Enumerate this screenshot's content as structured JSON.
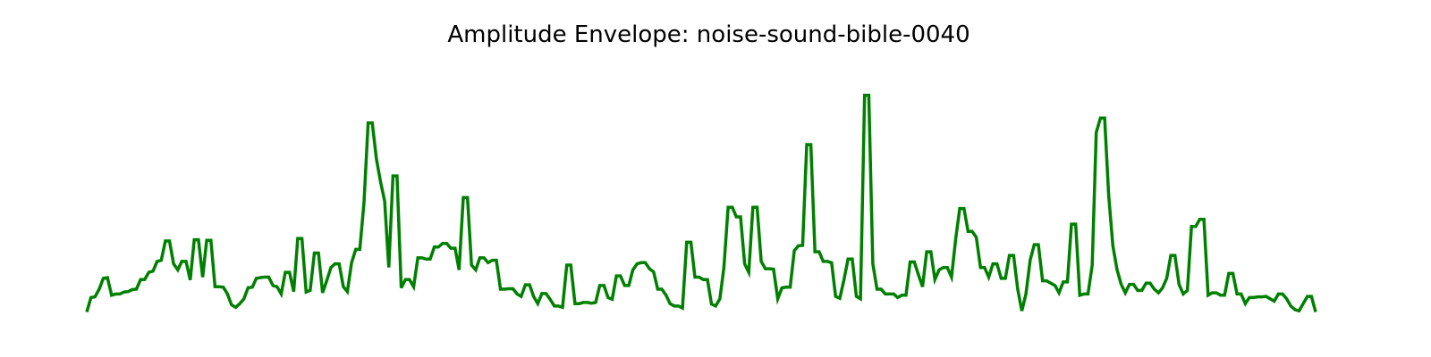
{
  "chart_data": {
    "type": "line",
    "title": "Amplitude Envelope: noise-sound-bible-0040",
    "xlabel": "",
    "ylabel": "",
    "axes_visible": false,
    "grid": false,
    "line_color": "#008000",
    "x_range": [
      0,
      1
    ],
    "y_range": [
      0,
      1
    ],
    "series": [
      {
        "points": [
          [
            0.0,
            0.005
          ],
          [
            0.0034,
            0.065
          ],
          [
            0.0067,
            0.068
          ],
          [
            0.0101,
            0.1
          ],
          [
            0.0135,
            0.145
          ],
          [
            0.0168,
            0.148
          ],
          [
            0.0202,
            0.075
          ],
          [
            0.0236,
            0.08
          ],
          [
            0.0269,
            0.08
          ],
          [
            0.0303,
            0.088
          ],
          [
            0.0337,
            0.09
          ],
          [
            0.037,
            0.098
          ],
          [
            0.0404,
            0.1
          ],
          [
            0.0438,
            0.14
          ],
          [
            0.0471,
            0.14
          ],
          [
            0.0505,
            0.17
          ],
          [
            0.0539,
            0.175
          ],
          [
            0.0572,
            0.215
          ],
          [
            0.0606,
            0.22
          ],
          [
            0.064,
            0.3
          ],
          [
            0.0673,
            0.3
          ],
          [
            0.0707,
            0.205
          ],
          [
            0.0741,
            0.18
          ],
          [
            0.0774,
            0.215
          ],
          [
            0.0808,
            0.215
          ],
          [
            0.0842,
            0.138
          ],
          [
            0.0875,
            0.305
          ],
          [
            0.0909,
            0.305
          ],
          [
            0.0943,
            0.15
          ],
          [
            0.0976,
            0.303
          ],
          [
            0.101,
            0.303
          ],
          [
            0.1044,
            0.11
          ],
          [
            0.1077,
            0.11
          ],
          [
            0.1111,
            0.108
          ],
          [
            0.1145,
            0.08
          ],
          [
            0.1178,
            0.035
          ],
          [
            0.1212,
            0.025
          ],
          [
            0.1246,
            0.04
          ],
          [
            0.1279,
            0.06
          ],
          [
            0.1313,
            0.106
          ],
          [
            0.1347,
            0.108
          ],
          [
            0.138,
            0.145
          ],
          [
            0.1414,
            0.148
          ],
          [
            0.1448,
            0.15
          ],
          [
            0.1481,
            0.15
          ],
          [
            0.1515,
            0.115
          ],
          [
            0.1549,
            0.11
          ],
          [
            0.1582,
            0.08
          ],
          [
            0.1616,
            0.17
          ],
          [
            0.165,
            0.17
          ],
          [
            0.1684,
            0.09
          ],
          [
            0.1717,
            0.31
          ],
          [
            0.1751,
            0.31
          ],
          [
            0.1785,
            0.088
          ],
          [
            0.1818,
            0.095
          ],
          [
            0.1852,
            0.25
          ],
          [
            0.1886,
            0.25
          ],
          [
            0.1919,
            0.085
          ],
          [
            0.1953,
            0.135
          ],
          [
            0.1987,
            0.19
          ],
          [
            0.202,
            0.205
          ],
          [
            0.2054,
            0.205
          ],
          [
            0.2088,
            0.11
          ],
          [
            0.2121,
            0.09
          ],
          [
            0.2155,
            0.21
          ],
          [
            0.2189,
            0.265
          ],
          [
            0.2222,
            0.265
          ],
          [
            0.2256,
            0.46
          ],
          [
            0.229,
            0.79
          ],
          [
            0.2323,
            0.79
          ],
          [
            0.2357,
            0.64
          ],
          [
            0.2391,
            0.545
          ],
          [
            0.2424,
            0.465
          ],
          [
            0.2458,
            0.19
          ],
          [
            0.2492,
            0.57
          ],
          [
            0.2525,
            0.57
          ],
          [
            0.2559,
            0.105
          ],
          [
            0.2593,
            0.14
          ],
          [
            0.2626,
            0.14
          ],
          [
            0.266,
            0.11
          ],
          [
            0.2694,
            0.23
          ],
          [
            0.2727,
            0.23
          ],
          [
            0.2761,
            0.225
          ],
          [
            0.2795,
            0.225
          ],
          [
            0.2828,
            0.275
          ],
          [
            0.2862,
            0.275
          ],
          [
            0.2896,
            0.29
          ],
          [
            0.2929,
            0.29
          ],
          [
            0.2963,
            0.27
          ],
          [
            0.2997,
            0.27
          ],
          [
            0.303,
            0.18
          ],
          [
            0.3064,
            0.48
          ],
          [
            0.3098,
            0.48
          ],
          [
            0.3131,
            0.2
          ],
          [
            0.3165,
            0.18
          ],
          [
            0.3199,
            0.23
          ],
          [
            0.3232,
            0.23
          ],
          [
            0.3266,
            0.21
          ],
          [
            0.33,
            0.22
          ],
          [
            0.3333,
            0.22
          ],
          [
            0.3367,
            0.1
          ],
          [
            0.3401,
            0.1
          ],
          [
            0.3434,
            0.102
          ],
          [
            0.3468,
            0.102
          ],
          [
            0.3502,
            0.08
          ],
          [
            0.3535,
            0.07
          ],
          [
            0.3569,
            0.118
          ],
          [
            0.3603,
            0.118
          ],
          [
            0.3636,
            0.07
          ],
          [
            0.367,
            0.04
          ],
          [
            0.3704,
            0.082
          ],
          [
            0.3737,
            0.082
          ],
          [
            0.3771,
            0.058
          ],
          [
            0.3805,
            0.03
          ],
          [
            0.3838,
            0.03
          ],
          [
            0.3872,
            0.025
          ],
          [
            0.3906,
            0.2
          ],
          [
            0.3939,
            0.2
          ],
          [
            0.3973,
            0.04
          ],
          [
            0.4007,
            0.04
          ],
          [
            0.404,
            0.045
          ],
          [
            0.4074,
            0.045
          ],
          [
            0.4108,
            0.042
          ],
          [
            0.4141,
            0.045
          ],
          [
            0.4175,
            0.115
          ],
          [
            0.4209,
            0.115
          ],
          [
            0.4242,
            0.065
          ],
          [
            0.4276,
            0.058
          ],
          [
            0.431,
            0.155
          ],
          [
            0.4343,
            0.155
          ],
          [
            0.4377,
            0.115
          ],
          [
            0.4411,
            0.115
          ],
          [
            0.4444,
            0.18
          ],
          [
            0.4478,
            0.205
          ],
          [
            0.4512,
            0.21
          ],
          [
            0.4545,
            0.21
          ],
          [
            0.4579,
            0.185
          ],
          [
            0.4613,
            0.172
          ],
          [
            0.4646,
            0.1
          ],
          [
            0.468,
            0.1
          ],
          [
            0.4714,
            0.075
          ],
          [
            0.4747,
            0.04
          ],
          [
            0.4781,
            0.03
          ],
          [
            0.4815,
            0.03
          ],
          [
            0.4848,
            0.022
          ],
          [
            0.4882,
            0.295
          ],
          [
            0.4916,
            0.295
          ],
          [
            0.4949,
            0.15
          ],
          [
            0.4983,
            0.15
          ],
          [
            0.5017,
            0.14
          ],
          [
            0.5051,
            0.14
          ],
          [
            0.5084,
            0.038
          ],
          [
            0.5118,
            0.03
          ],
          [
            0.5152,
            0.06
          ],
          [
            0.5185,
            0.19
          ],
          [
            0.5219,
            0.44
          ],
          [
            0.5253,
            0.44
          ],
          [
            0.5286,
            0.4
          ],
          [
            0.532,
            0.4
          ],
          [
            0.5354,
            0.205
          ],
          [
            0.5387,
            0.17
          ],
          [
            0.5421,
            0.44
          ],
          [
            0.5455,
            0.44
          ],
          [
            0.5488,
            0.215
          ],
          [
            0.5522,
            0.185
          ],
          [
            0.5556,
            0.185
          ],
          [
            0.5589,
            0.183
          ],
          [
            0.5623,
            0.06
          ],
          [
            0.5657,
            0.105
          ],
          [
            0.569,
            0.108
          ],
          [
            0.5724,
            0.108
          ],
          [
            0.5758,
            0.26
          ],
          [
            0.5791,
            0.28
          ],
          [
            0.5825,
            0.282
          ],
          [
            0.5859,
            0.7
          ],
          [
            0.5892,
            0.7
          ],
          [
            0.5926,
            0.255
          ],
          [
            0.596,
            0.255
          ],
          [
            0.5993,
            0.215
          ],
          [
            0.6027,
            0.215
          ],
          [
            0.6061,
            0.21
          ],
          [
            0.6094,
            0.07
          ],
          [
            0.6128,
            0.062
          ],
          [
            0.6162,
            0.14
          ],
          [
            0.6195,
            0.225
          ],
          [
            0.6229,
            0.225
          ],
          [
            0.6263,
            0.07
          ],
          [
            0.6296,
            0.06
          ],
          [
            0.633,
            0.905
          ],
          [
            0.6364,
            0.905
          ],
          [
            0.6397,
            0.205
          ],
          [
            0.6431,
            0.1
          ],
          [
            0.6465,
            0.1
          ],
          [
            0.6498,
            0.08
          ],
          [
            0.6532,
            0.08
          ],
          [
            0.6566,
            0.08
          ],
          [
            0.6599,
            0.065
          ],
          [
            0.6633,
            0.075
          ],
          [
            0.6667,
            0.075
          ],
          [
            0.67,
            0.213
          ],
          [
            0.6734,
            0.213
          ],
          [
            0.6768,
            0.16
          ],
          [
            0.6801,
            0.11
          ],
          [
            0.6835,
            0.255
          ],
          [
            0.6869,
            0.255
          ],
          [
            0.6902,
            0.14
          ],
          [
            0.6936,
            0.18
          ],
          [
            0.697,
            0.19
          ],
          [
            0.7003,
            0.19
          ],
          [
            0.7037,
            0.15
          ],
          [
            0.7071,
            0.31
          ],
          [
            0.7104,
            0.435
          ],
          [
            0.7138,
            0.435
          ],
          [
            0.7172,
            0.34
          ],
          [
            0.7205,
            0.34
          ],
          [
            0.7239,
            0.315
          ],
          [
            0.7273,
            0.19
          ],
          [
            0.7306,
            0.19
          ],
          [
            0.734,
            0.15
          ],
          [
            0.7374,
            0.205
          ],
          [
            0.7407,
            0.205
          ],
          [
            0.7441,
            0.145
          ],
          [
            0.7475,
            0.145
          ],
          [
            0.7508,
            0.24
          ],
          [
            0.7542,
            0.24
          ],
          [
            0.7576,
            0.1
          ],
          [
            0.7609,
            0.01
          ],
          [
            0.7643,
            0.08
          ],
          [
            0.7677,
            0.22
          ],
          [
            0.771,
            0.285
          ],
          [
            0.7744,
            0.285
          ],
          [
            0.7778,
            0.135
          ],
          [
            0.7811,
            0.135
          ],
          [
            0.7845,
            0.125
          ],
          [
            0.7879,
            0.115
          ],
          [
            0.7912,
            0.085
          ],
          [
            0.7946,
            0.13
          ],
          [
            0.798,
            0.13
          ],
          [
            0.8013,
            0.37
          ],
          [
            0.8047,
            0.37
          ],
          [
            0.8081,
            0.075
          ],
          [
            0.8114,
            0.08
          ],
          [
            0.8148,
            0.08
          ],
          [
            0.8182,
            0.2
          ],
          [
            0.8215,
            0.75
          ],
          [
            0.8249,
            0.81
          ],
          [
            0.8283,
            0.81
          ],
          [
            0.8316,
            0.49
          ],
          [
            0.835,
            0.28
          ],
          [
            0.8384,
            0.18
          ],
          [
            0.8418,
            0.12
          ],
          [
            0.8451,
            0.085
          ],
          [
            0.8485,
            0.12
          ],
          [
            0.8519,
            0.12
          ],
          [
            0.8552,
            0.095
          ],
          [
            0.8586,
            0.095
          ],
          [
            0.862,
            0.125
          ],
          [
            0.8653,
            0.125
          ],
          [
            0.8687,
            0.1
          ],
          [
            0.8721,
            0.085
          ],
          [
            0.8754,
            0.105
          ],
          [
            0.8788,
            0.145
          ],
          [
            0.8822,
            0.24
          ],
          [
            0.8855,
            0.24
          ],
          [
            0.8889,
            0.12
          ],
          [
            0.8923,
            0.08
          ],
          [
            0.8956,
            0.095
          ],
          [
            0.899,
            0.36
          ],
          [
            0.9024,
            0.36
          ],
          [
            0.9057,
            0.39
          ],
          [
            0.9091,
            0.39
          ],
          [
            0.9125,
            0.075
          ],
          [
            0.9158,
            0.085
          ],
          [
            0.9192,
            0.085
          ],
          [
            0.9226,
            0.075
          ],
          [
            0.9259,
            0.075
          ],
          [
            0.9293,
            0.165
          ],
          [
            0.9327,
            0.165
          ],
          [
            0.936,
            0.08
          ],
          [
            0.9394,
            0.08
          ],
          [
            0.9428,
            0.04
          ],
          [
            0.9461,
            0.065
          ],
          [
            0.9495,
            0.065
          ],
          [
            0.9529,
            0.068
          ],
          [
            0.9562,
            0.068
          ],
          [
            0.9596,
            0.07
          ],
          [
            0.963,
            0.06
          ],
          [
            0.9663,
            0.05
          ],
          [
            0.9697,
            0.08
          ],
          [
            0.9731,
            0.08
          ],
          [
            0.9764,
            0.06
          ],
          [
            0.9798,
            0.03
          ],
          [
            0.9832,
            0.015
          ],
          [
            0.9865,
            0.01
          ],
          [
            0.9899,
            0.04
          ],
          [
            0.9933,
            0.07
          ],
          [
            0.9966,
            0.07
          ],
          [
            1.0,
            0.005
          ]
        ]
      }
    ]
  }
}
